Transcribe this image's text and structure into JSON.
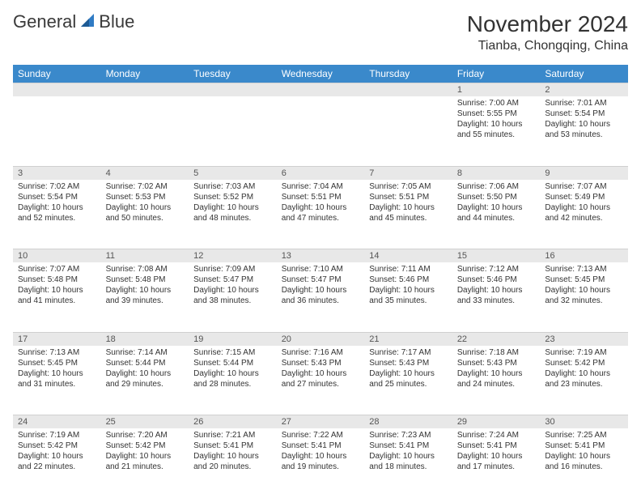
{
  "brand": {
    "word1": "General",
    "word2": "Blue"
  },
  "title": "November 2024",
  "location": "Tianba, Chongqing, China",
  "colors": {
    "header_bg": "#3a89cb",
    "header_fg": "#ffffff",
    "daynum_bg": "#e8e8e8",
    "text": "#333333",
    "brand_blue": "#2f7bc4"
  },
  "day_names": [
    "Sunday",
    "Monday",
    "Tuesday",
    "Wednesday",
    "Thursday",
    "Friday",
    "Saturday"
  ],
  "weeks": [
    [
      {
        "n": "",
        "sr": "",
        "ss": "",
        "dl": ""
      },
      {
        "n": "",
        "sr": "",
        "ss": "",
        "dl": ""
      },
      {
        "n": "",
        "sr": "",
        "ss": "",
        "dl": ""
      },
      {
        "n": "",
        "sr": "",
        "ss": "",
        "dl": ""
      },
      {
        "n": "",
        "sr": "",
        "ss": "",
        "dl": ""
      },
      {
        "n": "1",
        "sr": "Sunrise: 7:00 AM",
        "ss": "Sunset: 5:55 PM",
        "dl": "Daylight: 10 hours and 55 minutes."
      },
      {
        "n": "2",
        "sr": "Sunrise: 7:01 AM",
        "ss": "Sunset: 5:54 PM",
        "dl": "Daylight: 10 hours and 53 minutes."
      }
    ],
    [
      {
        "n": "3",
        "sr": "Sunrise: 7:02 AM",
        "ss": "Sunset: 5:54 PM",
        "dl": "Daylight: 10 hours and 52 minutes."
      },
      {
        "n": "4",
        "sr": "Sunrise: 7:02 AM",
        "ss": "Sunset: 5:53 PM",
        "dl": "Daylight: 10 hours and 50 minutes."
      },
      {
        "n": "5",
        "sr": "Sunrise: 7:03 AM",
        "ss": "Sunset: 5:52 PM",
        "dl": "Daylight: 10 hours and 48 minutes."
      },
      {
        "n": "6",
        "sr": "Sunrise: 7:04 AM",
        "ss": "Sunset: 5:51 PM",
        "dl": "Daylight: 10 hours and 47 minutes."
      },
      {
        "n": "7",
        "sr": "Sunrise: 7:05 AM",
        "ss": "Sunset: 5:51 PM",
        "dl": "Daylight: 10 hours and 45 minutes."
      },
      {
        "n": "8",
        "sr": "Sunrise: 7:06 AM",
        "ss": "Sunset: 5:50 PM",
        "dl": "Daylight: 10 hours and 44 minutes."
      },
      {
        "n": "9",
        "sr": "Sunrise: 7:07 AM",
        "ss": "Sunset: 5:49 PM",
        "dl": "Daylight: 10 hours and 42 minutes."
      }
    ],
    [
      {
        "n": "10",
        "sr": "Sunrise: 7:07 AM",
        "ss": "Sunset: 5:48 PM",
        "dl": "Daylight: 10 hours and 41 minutes."
      },
      {
        "n": "11",
        "sr": "Sunrise: 7:08 AM",
        "ss": "Sunset: 5:48 PM",
        "dl": "Daylight: 10 hours and 39 minutes."
      },
      {
        "n": "12",
        "sr": "Sunrise: 7:09 AM",
        "ss": "Sunset: 5:47 PM",
        "dl": "Daylight: 10 hours and 38 minutes."
      },
      {
        "n": "13",
        "sr": "Sunrise: 7:10 AM",
        "ss": "Sunset: 5:47 PM",
        "dl": "Daylight: 10 hours and 36 minutes."
      },
      {
        "n": "14",
        "sr": "Sunrise: 7:11 AM",
        "ss": "Sunset: 5:46 PM",
        "dl": "Daylight: 10 hours and 35 minutes."
      },
      {
        "n": "15",
        "sr": "Sunrise: 7:12 AM",
        "ss": "Sunset: 5:46 PM",
        "dl": "Daylight: 10 hours and 33 minutes."
      },
      {
        "n": "16",
        "sr": "Sunrise: 7:13 AM",
        "ss": "Sunset: 5:45 PM",
        "dl": "Daylight: 10 hours and 32 minutes."
      }
    ],
    [
      {
        "n": "17",
        "sr": "Sunrise: 7:13 AM",
        "ss": "Sunset: 5:45 PM",
        "dl": "Daylight: 10 hours and 31 minutes."
      },
      {
        "n": "18",
        "sr": "Sunrise: 7:14 AM",
        "ss": "Sunset: 5:44 PM",
        "dl": "Daylight: 10 hours and 29 minutes."
      },
      {
        "n": "19",
        "sr": "Sunrise: 7:15 AM",
        "ss": "Sunset: 5:44 PM",
        "dl": "Daylight: 10 hours and 28 minutes."
      },
      {
        "n": "20",
        "sr": "Sunrise: 7:16 AM",
        "ss": "Sunset: 5:43 PM",
        "dl": "Daylight: 10 hours and 27 minutes."
      },
      {
        "n": "21",
        "sr": "Sunrise: 7:17 AM",
        "ss": "Sunset: 5:43 PM",
        "dl": "Daylight: 10 hours and 25 minutes."
      },
      {
        "n": "22",
        "sr": "Sunrise: 7:18 AM",
        "ss": "Sunset: 5:43 PM",
        "dl": "Daylight: 10 hours and 24 minutes."
      },
      {
        "n": "23",
        "sr": "Sunrise: 7:19 AM",
        "ss": "Sunset: 5:42 PM",
        "dl": "Daylight: 10 hours and 23 minutes."
      }
    ],
    [
      {
        "n": "24",
        "sr": "Sunrise: 7:19 AM",
        "ss": "Sunset: 5:42 PM",
        "dl": "Daylight: 10 hours and 22 minutes."
      },
      {
        "n": "25",
        "sr": "Sunrise: 7:20 AM",
        "ss": "Sunset: 5:42 PM",
        "dl": "Daylight: 10 hours and 21 minutes."
      },
      {
        "n": "26",
        "sr": "Sunrise: 7:21 AM",
        "ss": "Sunset: 5:41 PM",
        "dl": "Daylight: 10 hours and 20 minutes."
      },
      {
        "n": "27",
        "sr": "Sunrise: 7:22 AM",
        "ss": "Sunset: 5:41 PM",
        "dl": "Daylight: 10 hours and 19 minutes."
      },
      {
        "n": "28",
        "sr": "Sunrise: 7:23 AM",
        "ss": "Sunset: 5:41 PM",
        "dl": "Daylight: 10 hours and 18 minutes."
      },
      {
        "n": "29",
        "sr": "Sunrise: 7:24 AM",
        "ss": "Sunset: 5:41 PM",
        "dl": "Daylight: 10 hours and 17 minutes."
      },
      {
        "n": "30",
        "sr": "Sunrise: 7:25 AM",
        "ss": "Sunset: 5:41 PM",
        "dl": "Daylight: 10 hours and 16 minutes."
      }
    ]
  ]
}
